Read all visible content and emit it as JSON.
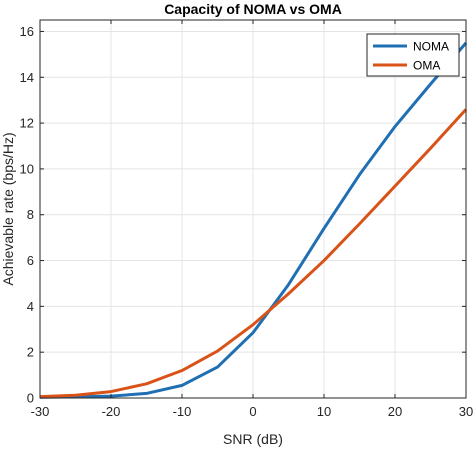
{
  "chart_data": {
    "type": "line",
    "title": "Capacity of NOMA vs OMA",
    "xlabel": "SNR (dB)",
    "ylabel": "Achievable rate (bps/Hz)",
    "xlim": [
      -30,
      30
    ],
    "ylim": [
      0,
      16.5
    ],
    "xticks": [
      -30,
      -20,
      -10,
      0,
      10,
      20,
      30
    ],
    "xtick_labels": [
      "-30",
      "-20",
      "-10",
      "0",
      "10",
      "20",
      "30"
    ],
    "yticks": [
      0,
      2,
      4,
      6,
      8,
      10,
      12,
      14,
      16
    ],
    "ytick_labels": [
      "0",
      "2",
      "4",
      "6",
      "8",
      "10",
      "12",
      "14",
      "16"
    ],
    "grid": true,
    "legend_position": "top-right",
    "series": [
      {
        "name": "NOMA",
        "color": "#1f6fb2",
        "x": [
          -30,
          -25,
          -20,
          -15,
          -10,
          -5,
          0,
          5,
          10,
          15,
          20,
          25,
          30
        ],
        "y": [
          0.03,
          0.05,
          0.08,
          0.2,
          0.55,
          1.35,
          2.85,
          4.95,
          7.4,
          9.75,
          11.85,
          13.7,
          15.5
        ]
      },
      {
        "name": "OMA",
        "color": "#d95319",
        "x": [
          -30,
          -25,
          -20,
          -15,
          -10,
          -5,
          0,
          5,
          10,
          15,
          20,
          25,
          30
        ],
        "y": [
          0.06,
          0.12,
          0.28,
          0.62,
          1.2,
          2.05,
          3.2,
          4.55,
          6.0,
          7.6,
          9.25,
          10.9,
          12.6
        ]
      }
    ]
  }
}
